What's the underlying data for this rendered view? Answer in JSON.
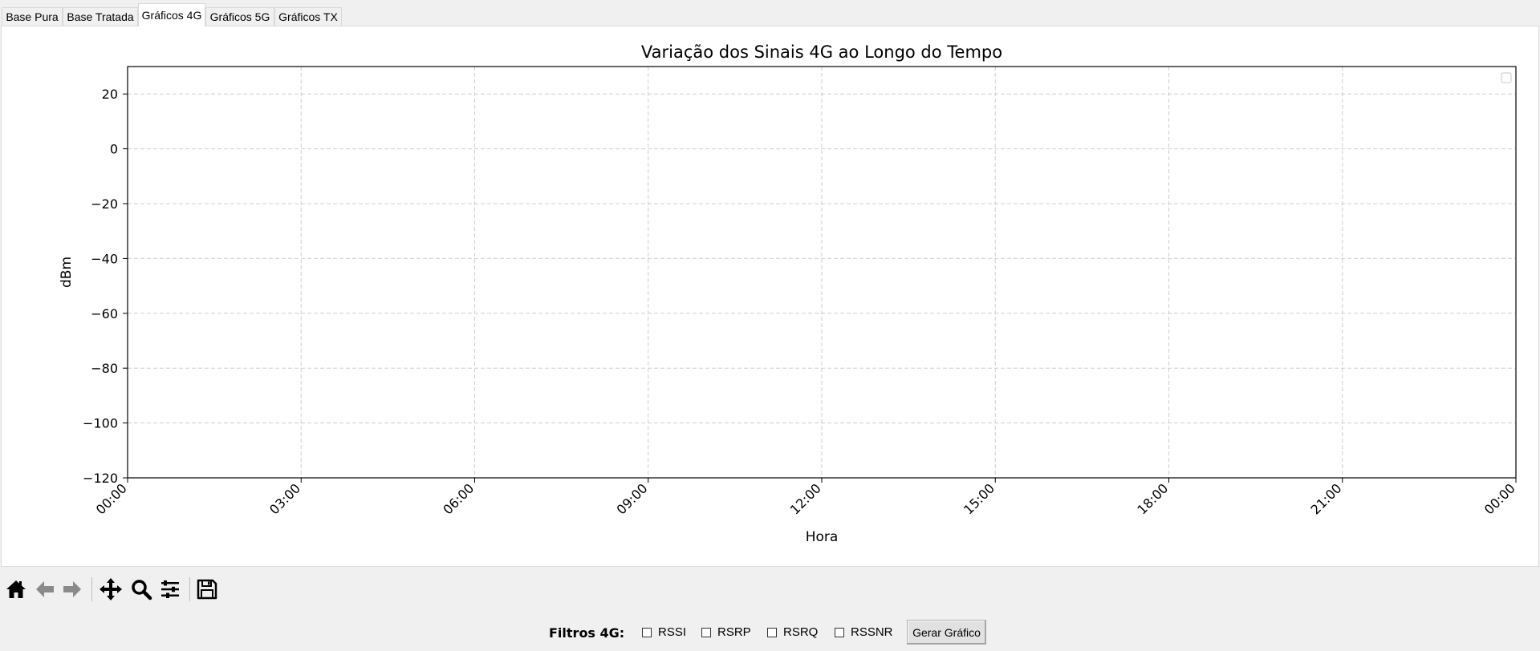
{
  "tabs": [
    {
      "label": "Base Pura",
      "active": false
    },
    {
      "label": "Base Tratada",
      "active": false
    },
    {
      "label": "Gráficos 4G",
      "active": true
    },
    {
      "label": "Gráficos 5G",
      "active": false
    },
    {
      "label": "Gráficos TX",
      "active": false
    }
  ],
  "toolbar": {
    "buttons": [
      "home-icon",
      "back-arrow-icon",
      "forward-arrow-icon",
      "pan-icon",
      "zoom-icon",
      "configure-subplots-icon",
      "save-icon"
    ]
  },
  "filters": {
    "label": "Filtros 4G:",
    "options": [
      {
        "label": "RSSI",
        "checked": false
      },
      {
        "label": "RSRP",
        "checked": false
      },
      {
        "label": "RSRQ",
        "checked": false
      },
      {
        "label": "RSSNR",
        "checked": false
      }
    ],
    "button_label": "Gerar Gráfico"
  },
  "chart_data": {
    "type": "line",
    "title": "Variação dos Sinais 4G ao Longo do Tempo",
    "xlabel": "Hora",
    "ylabel": "dBm",
    "x_ticks": [
      "00:00",
      "03:00",
      "06:00",
      "09:00",
      "12:00",
      "15:00",
      "18:00",
      "21:00",
      "00:00"
    ],
    "y_ticks": [
      20,
      0,
      -20,
      -40,
      -60,
      -80,
      -100,
      -120
    ],
    "ylim": [
      -120,
      30
    ],
    "grid": true,
    "legend": "top-right",
    "series": []
  }
}
